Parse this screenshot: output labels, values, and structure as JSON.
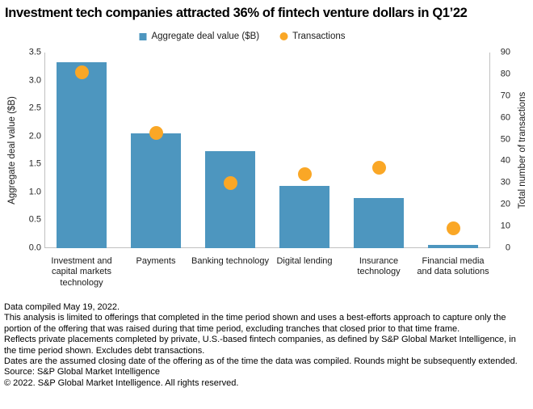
{
  "title": "Investment tech companies attracted 36% of fintech venture dollars in Q1’22",
  "legend": [
    {
      "label": "Aggregate deal value ($B)",
      "color": "#4D96BF",
      "shape": "square",
      "icon": "bar-swatch-icon"
    },
    {
      "label": "Transactions",
      "color": "#FAA726",
      "shape": "circle",
      "icon": "transactions-dot-icon"
    }
  ],
  "chart_data": {
    "type": "bar",
    "subtype": "combo-bar-scatter",
    "categories": [
      "Investment and capital markets technology",
      "Payments",
      "Banking technology",
      "Digital lending",
      "Insurance technology",
      "Financial media and data solutions"
    ],
    "series": [
      {
        "name": "Aggregate deal value ($B)",
        "type": "bar",
        "axis": "left",
        "color": "#4D96BF",
        "values": [
          3.32,
          2.05,
          1.73,
          1.11,
          0.9,
          0.06
        ]
      },
      {
        "name": "Transactions",
        "type": "scatter",
        "axis": "right",
        "color": "#FAA726",
        "values": [
          81,
          53,
          30,
          34,
          37,
          9
        ]
      }
    ],
    "left_axis": {
      "label": "Aggregate deal value ($B)",
      "min": 0,
      "max": 3.5,
      "step": 0.5,
      "ticks": [
        "0.0",
        "0.5",
        "1.0",
        "1.5",
        "2.0",
        "2.5",
        "3.0",
        "3.5"
      ]
    },
    "right_axis": {
      "label": "Total number of transactions",
      "min": 0,
      "max": 90,
      "step": 10,
      "ticks": [
        "0",
        "10",
        "20",
        "30",
        "40",
        "50",
        "60",
        "70",
        "80",
        "90"
      ]
    },
    "grid": false,
    "legend_position": "top",
    "axis_line_color": "#C0C0C0"
  },
  "footnotes": [
    "Data compiled May 19, 2022.",
    "This analysis is limited to offerings that completed in the time period shown and uses a best-efforts approach to capture only the portion of the offering that was raised during that time period, excluding tranches that closed prior to that time frame.",
    "Reflects private placements completed by private, U.S.-based fintech companies, as defined by S&P Global Market Intelligence, in the time period shown. Excludes debt transactions.",
    "Dates are the assumed closing date of the offering as of the time the data was compiled. Rounds might be subsequently extended.",
    "Source: S&P Global Market Intelligence",
    "© 2022. S&P Global Market Intelligence. All rights reserved."
  ]
}
